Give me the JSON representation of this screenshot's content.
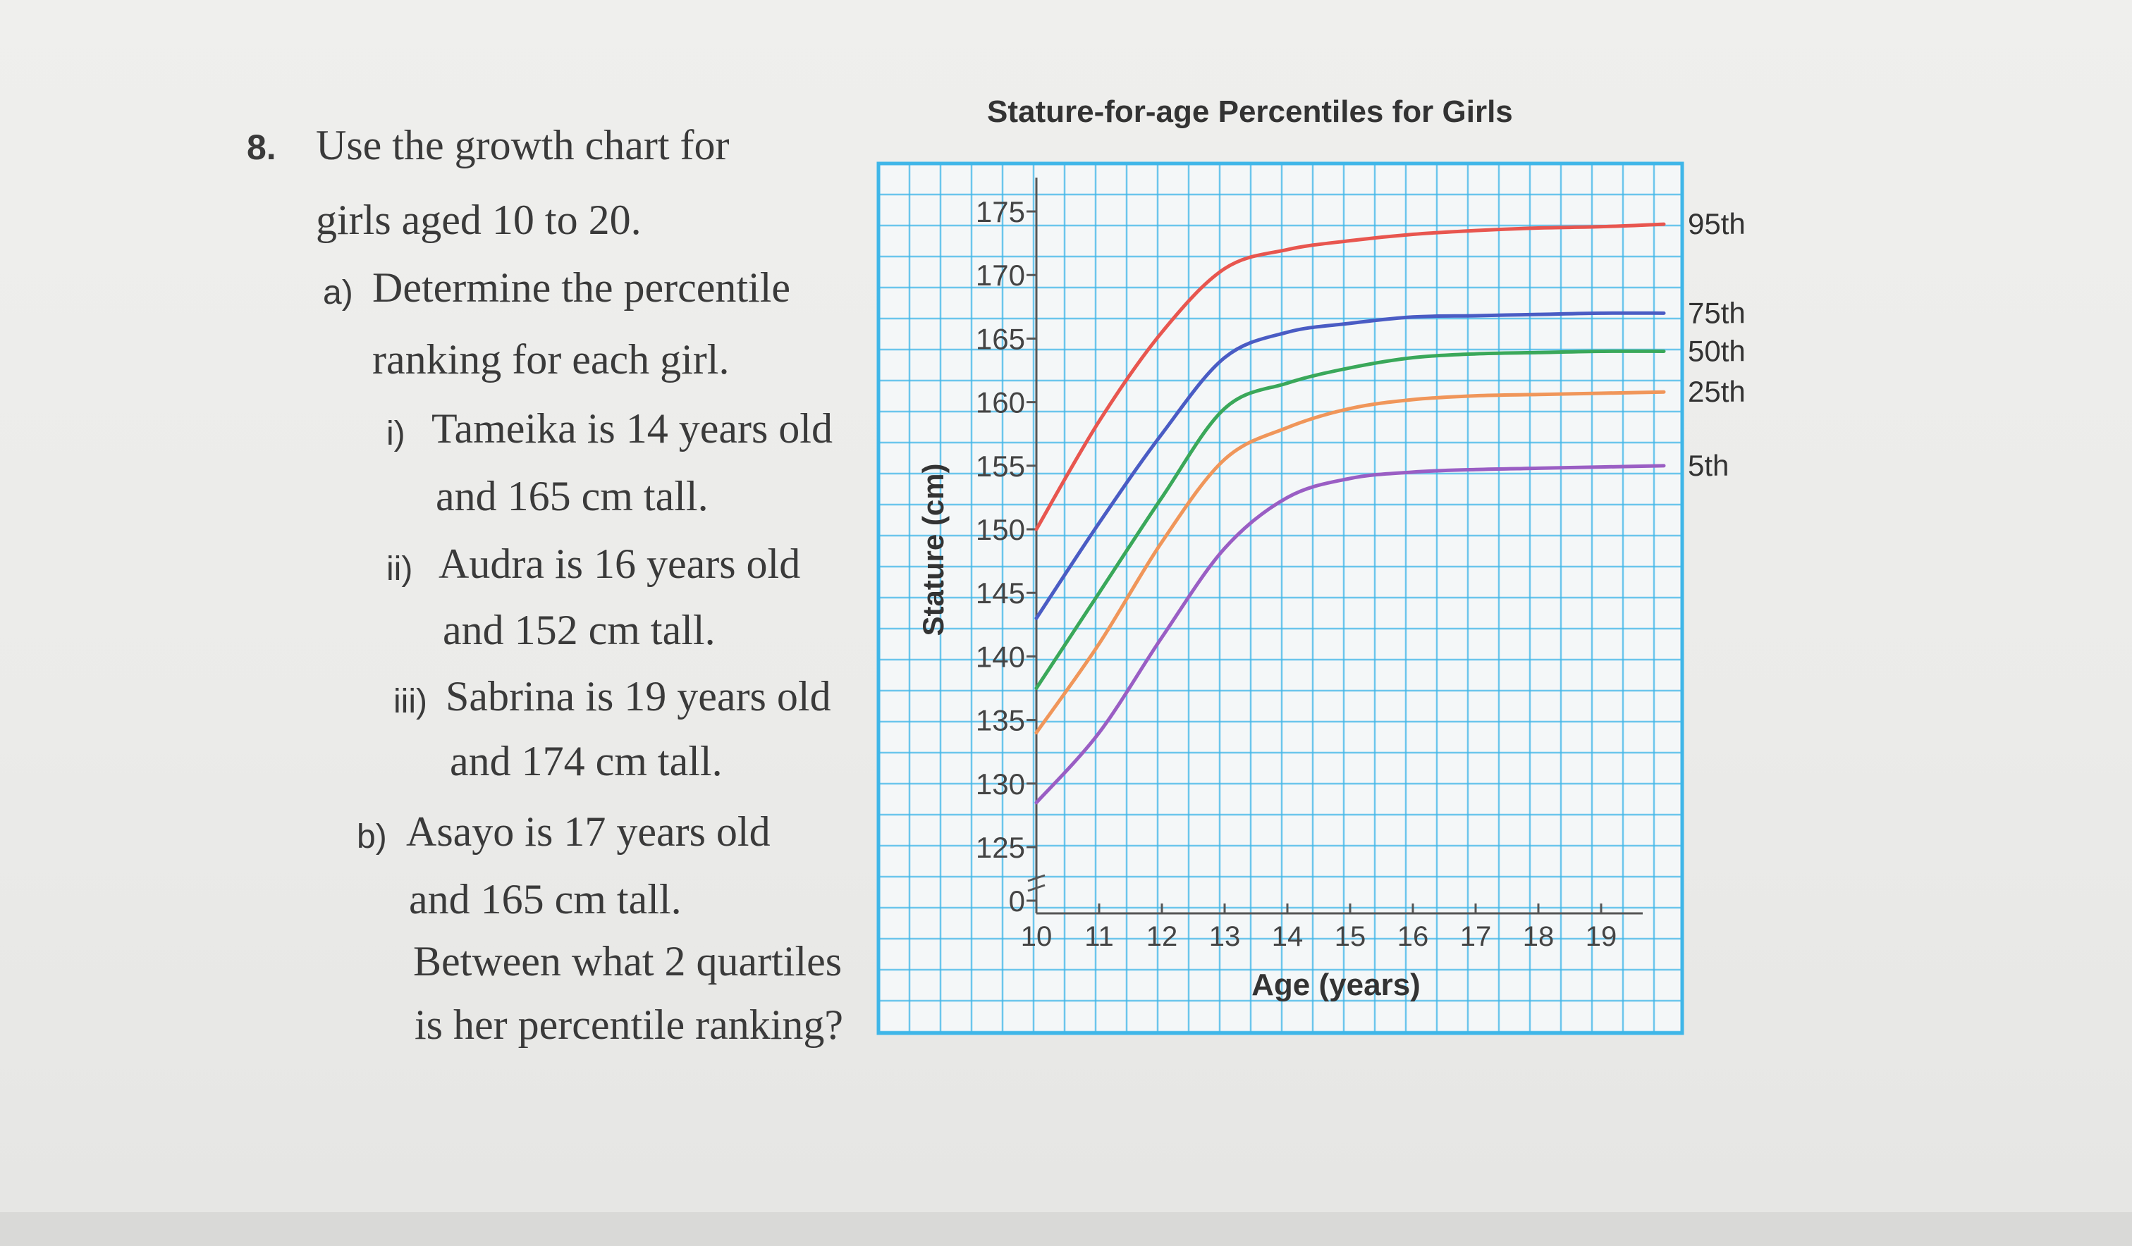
{
  "question": {
    "number": "8.",
    "intro_line1": "Use the growth chart for",
    "intro_line2": "girls aged 10 to 20.",
    "part_a_label": "a)",
    "part_a_line1": "Determine the percentile",
    "part_a_line2": "ranking for each girl.",
    "items": [
      {
        "label": "i)",
        "line1": "Tameika is 14 years old",
        "line2": "and 165 cm tall."
      },
      {
        "label": "ii)",
        "line1": "Audra is 16 years old",
        "line2": "and 152 cm tall."
      },
      {
        "label": "iii)",
        "line1": "Sabrina is 19 years old",
        "line2": "and 174 cm tall."
      }
    ],
    "part_b_label": "b)",
    "part_b_line1": "Asayo is 17 years old",
    "part_b_line2": "and 165 cm tall.",
    "part_b_line3": "Between what 2 quartiles",
    "part_b_line4": "is her percentile ranking?"
  },
  "chart_data": {
    "type": "line",
    "title": "Stature-for-age Percentiles for Girls",
    "xlabel": "Age (years)",
    "ylabel": "Stature (cm)",
    "x_ticks": [
      10,
      11,
      12,
      13,
      14,
      15,
      16,
      17,
      18,
      19
    ],
    "y_ticks": [
      0,
      125,
      130,
      135,
      140,
      145,
      150,
      155,
      160,
      165,
      170,
      175
    ],
    "xlim": [
      10,
      20
    ],
    "ylim": [
      125,
      176
    ],
    "axis_break": true,
    "grid": true,
    "grid_color": "#3fb6e8",
    "x": [
      10,
      11,
      12,
      13,
      14,
      15,
      16,
      17,
      18,
      19,
      20
    ],
    "series": [
      {
        "name": "95th",
        "color": "#e8564f",
        "values": [
          150,
          158.5,
          165.5,
          170.5,
          172,
          172.7,
          173.2,
          173.5,
          173.7,
          173.8,
          174
        ]
      },
      {
        "name": "75th",
        "color": "#4a5cc4",
        "values": [
          143,
          150.5,
          157.5,
          163.5,
          165.5,
          166.2,
          166.7,
          166.8,
          166.9,
          167,
          167
        ]
      },
      {
        "name": "50th",
        "color": "#3aa85a",
        "values": [
          137.5,
          145,
          152.5,
          159.5,
          161.5,
          162.7,
          163.5,
          163.8,
          163.9,
          164,
          164
        ]
      },
      {
        "name": "25th",
        "color": "#f0965a",
        "values": [
          134,
          141,
          149,
          155.5,
          158,
          159.5,
          160.2,
          160.5,
          160.6,
          160.7,
          160.8
        ]
      },
      {
        "name": "5th",
        "color": "#9a5ec4",
        "values": [
          128.5,
          134,
          141.5,
          148.5,
          152.5,
          154,
          154.5,
          154.7,
          154.8,
          154.9,
          155
        ]
      }
    ]
  }
}
